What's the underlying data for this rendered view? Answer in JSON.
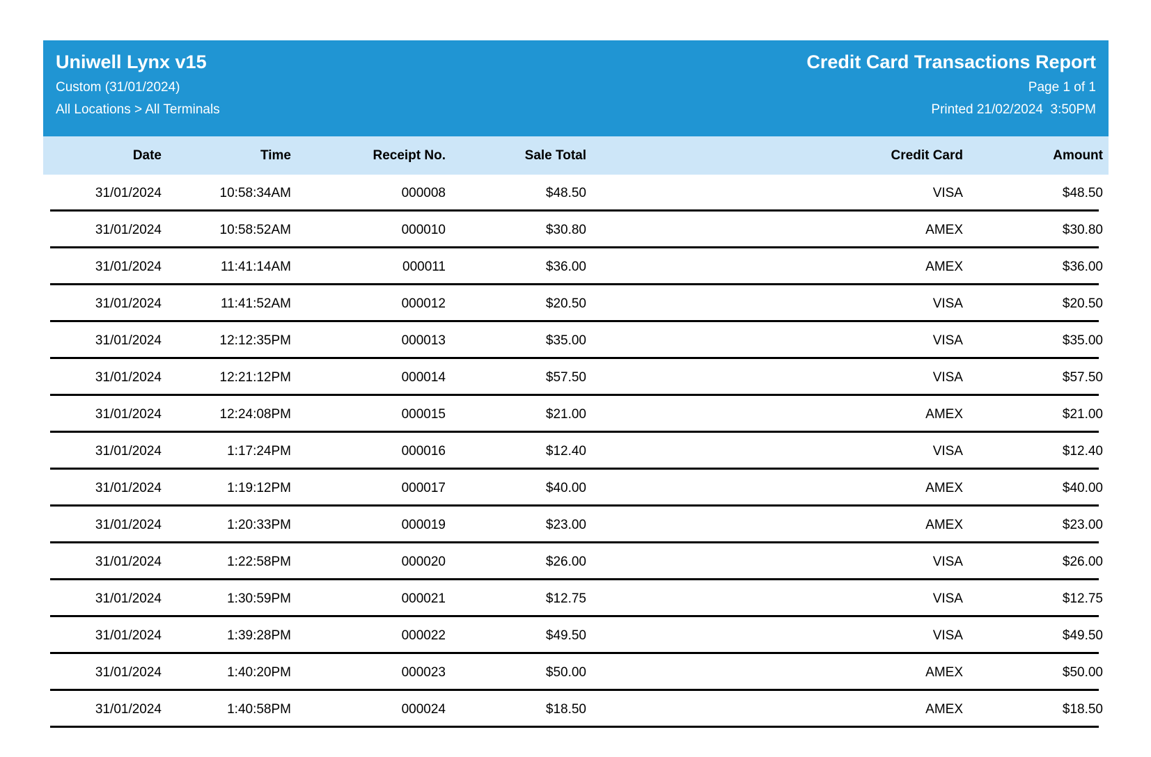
{
  "header": {
    "app_title": "Uniwell Lynx v15",
    "filter_line": "Custom (31/01/2024)",
    "scope_line": "All Locations > All Terminals",
    "report_title": "Credit Card Transactions Report",
    "page_line": "Page 1 of 1",
    "printed_line": "Printed 21/02/2024  3:50PM"
  },
  "colors": {
    "header_blue": "#2095d3",
    "column_band_blue": "#cde6f8",
    "separator_black": "#000000"
  },
  "table": {
    "columns": [
      "Date",
      "Time",
      "Receipt No.",
      "Sale Total",
      "Credit Card",
      "Amount"
    ],
    "rows": [
      {
        "date": "31/01/2024",
        "time": "10:58:34AM",
        "receipt_no": "000008",
        "sale_total": "$48.50",
        "credit_card": "VISA",
        "amount": "$48.50"
      },
      {
        "date": "31/01/2024",
        "time": "10:58:52AM",
        "receipt_no": "000010",
        "sale_total": "$30.80",
        "credit_card": "AMEX",
        "amount": "$30.80"
      },
      {
        "date": "31/01/2024",
        "time": "11:41:14AM",
        "receipt_no": "000011",
        "sale_total": "$36.00",
        "credit_card": "AMEX",
        "amount": "$36.00"
      },
      {
        "date": "31/01/2024",
        "time": "11:41:52AM",
        "receipt_no": "000012",
        "sale_total": "$20.50",
        "credit_card": "VISA",
        "amount": "$20.50"
      },
      {
        "date": "31/01/2024",
        "time": "12:12:35PM",
        "receipt_no": "000013",
        "sale_total": "$35.00",
        "credit_card": "VISA",
        "amount": "$35.00"
      },
      {
        "date": "31/01/2024",
        "time": "12:21:12PM",
        "receipt_no": "000014",
        "sale_total": "$57.50",
        "credit_card": "VISA",
        "amount": "$57.50"
      },
      {
        "date": "31/01/2024",
        "time": "12:24:08PM",
        "receipt_no": "000015",
        "sale_total": "$21.00",
        "credit_card": "AMEX",
        "amount": "$21.00"
      },
      {
        "date": "31/01/2024",
        "time": "1:17:24PM",
        "receipt_no": "000016",
        "sale_total": "$12.40",
        "credit_card": "VISA",
        "amount": "$12.40"
      },
      {
        "date": "31/01/2024",
        "time": "1:19:12PM",
        "receipt_no": "000017",
        "sale_total": "$40.00",
        "credit_card": "AMEX",
        "amount": "$40.00"
      },
      {
        "date": "31/01/2024",
        "time": "1:20:33PM",
        "receipt_no": "000019",
        "sale_total": "$23.00",
        "credit_card": "AMEX",
        "amount": "$23.00"
      },
      {
        "date": "31/01/2024",
        "time": "1:22:58PM",
        "receipt_no": "000020",
        "sale_total": "$26.00",
        "credit_card": "VISA",
        "amount": "$26.00"
      },
      {
        "date": "31/01/2024",
        "time": "1:30:59PM",
        "receipt_no": "000021",
        "sale_total": "$12.75",
        "credit_card": "VISA",
        "amount": "$12.75"
      },
      {
        "date": "31/01/2024",
        "time": "1:39:28PM",
        "receipt_no": "000022",
        "sale_total": "$49.50",
        "credit_card": "VISA",
        "amount": "$49.50"
      },
      {
        "date": "31/01/2024",
        "time": "1:40:20PM",
        "receipt_no": "000023",
        "sale_total": "$50.00",
        "credit_card": "AMEX",
        "amount": "$50.00"
      },
      {
        "date": "31/01/2024",
        "time": "1:40:58PM",
        "receipt_no": "000024",
        "sale_total": "$18.50",
        "credit_card": "AMEX",
        "amount": "$18.50"
      }
    ]
  }
}
